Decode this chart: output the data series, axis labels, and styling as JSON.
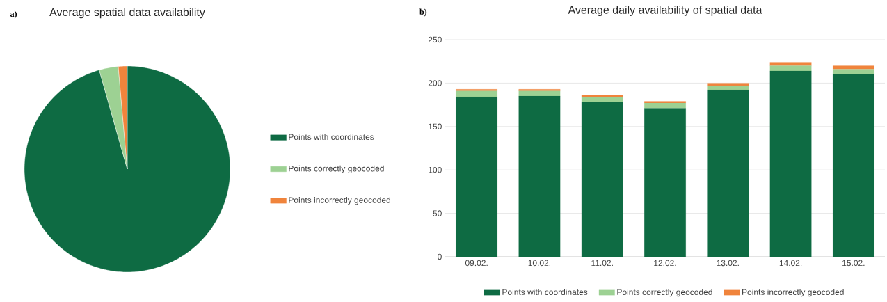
{
  "chart_data": [
    {
      "type": "pie",
      "title": "Average spatial data availability",
      "categories": [
        "Points with coordinates",
        "Points correctly geocoded",
        "Points incorrectly geocoded"
      ],
      "values": [
        95.6,
        3.0,
        1.4
      ],
      "colors": [
        "#0e6b43",
        "#9dd193",
        "#f0843c"
      ],
      "legend": "right",
      "annotations": [
        "a)"
      ]
    },
    {
      "type": "bar",
      "stacked": true,
      "title": "Average daily availability of spatial data",
      "categories": [
        "09.02.",
        "10.02.",
        "11.02.",
        "12.02.",
        "13.02.",
        "14.02.",
        "15.02."
      ],
      "series": [
        {
          "name": "Points with coordinates",
          "color": "#0e6b43",
          "values": [
            184,
            185,
            178,
            171,
            192,
            214,
            210
          ]
        },
        {
          "name": "Points correctly geocoded",
          "color": "#9dd193",
          "values": [
            7,
            6,
            6,
            6,
            5,
            6,
            6
          ]
        },
        {
          "name": "Points incorrectly geocoded",
          "color": "#f0843c",
          "values": [
            2,
            2,
            2,
            2,
            3,
            4,
            4
          ]
        }
      ],
      "ylim": [
        0,
        250
      ],
      "yticks": [
        0,
        50,
        100,
        150,
        200,
        250
      ],
      "grid": "y",
      "legend": "bottom",
      "annotations": [
        "b)"
      ]
    }
  ]
}
